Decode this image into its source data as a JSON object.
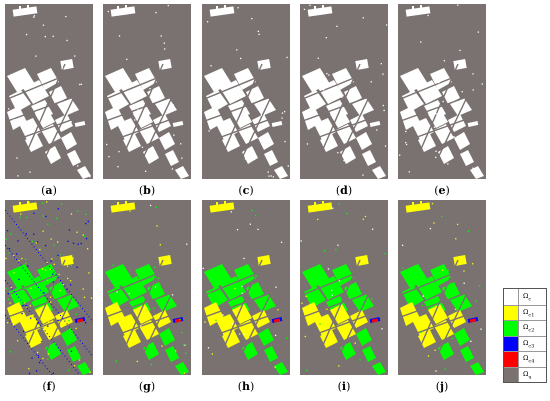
{
  "panels": [
    {
      "label": "a",
      "row": 0,
      "col": 0,
      "mode": "binary"
    },
    {
      "label": "b",
      "row": 0,
      "col": 1,
      "mode": "binary"
    },
    {
      "label": "c",
      "row": 0,
      "col": 2,
      "mode": "binary"
    },
    {
      "label": "d",
      "row": 0,
      "col": 3,
      "mode": "binary"
    },
    {
      "label": "e",
      "row": 0,
      "col": 4,
      "mode": "binary"
    },
    {
      "label": "f",
      "row": 1,
      "col": 0,
      "mode": "classes-noisy"
    },
    {
      "label": "g",
      "row": 1,
      "col": 1,
      "mode": "classes"
    },
    {
      "label": "h",
      "row": 1,
      "col": 2,
      "mode": "classes"
    },
    {
      "label": "i",
      "row": 1,
      "col": 3,
      "mode": "classes"
    },
    {
      "label": "j",
      "row": 1,
      "col": 4,
      "mode": "classes"
    }
  ],
  "captions": [
    "(a)",
    "(b)",
    "(c)",
    "(d)",
    "(e)",
    "(f)",
    "(g)",
    "(h)",
    "(i)",
    "(j)"
  ],
  "legend": [
    {
      "label": "Ω_c",
      "color": "#ffffff"
    },
    {
      "label": "Ω_c1",
      "color": "#ffff00"
    },
    {
      "label": "Ω_c2",
      "color": "#00ff00"
    },
    {
      "label": "Ω_c3",
      "color": "#0000ff"
    },
    {
      "label": "Ω_c4",
      "color": "#ff0000"
    },
    {
      "label": "Ω_u",
      "color": "#7a7270"
    }
  ],
  "colors": {
    "background": "#7a7270",
    "changed": "#ffffff",
    "c1": "#ffff00",
    "c2": "#00ff00",
    "c3": "#0000ff",
    "c4": "#ff0000"
  }
}
